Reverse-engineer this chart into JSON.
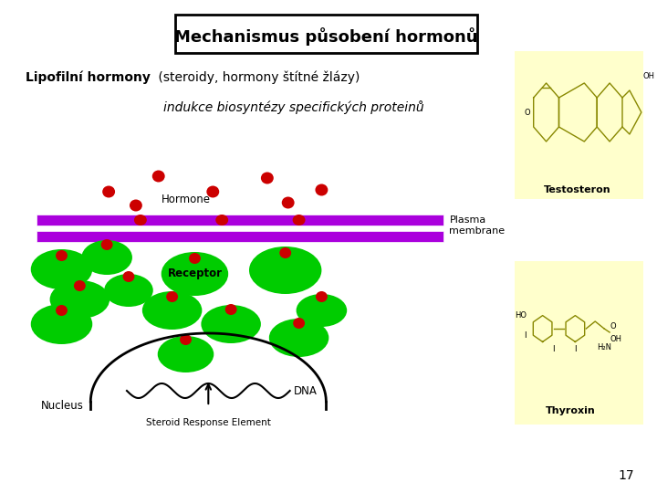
{
  "title": "Mechanismus působení hormonů",
  "subtitle_bold": "Lipofilní hormony",
  "subtitle_normal": " (steroidy, hormony štítné žlázy)",
  "subtitle2": "indukce biosyntézy specifických proteinů",
  "bg_color": "#ffffff",
  "title_box_color": "#ffffff",
  "title_border_color": "#000000",
  "membrane_color": "#aa00dd",
  "hormone_color": "#cc0000",
  "receptor_color": "#00cc00",
  "page_number": "17",
  "yellow_box_color": "#ffffcc",
  "label_testosteron": "Testosteron",
  "label_thyroxin": "Thyroxin",
  "label_hormone": "Hormone",
  "label_plasma": "Plasma\nmembrane",
  "label_receptor": "Receptor",
  "label_nucleus": "Nucleus",
  "label_dna": "DNA",
  "label_sre": "Steroid Response Element",
  "mol_color": "#888800"
}
